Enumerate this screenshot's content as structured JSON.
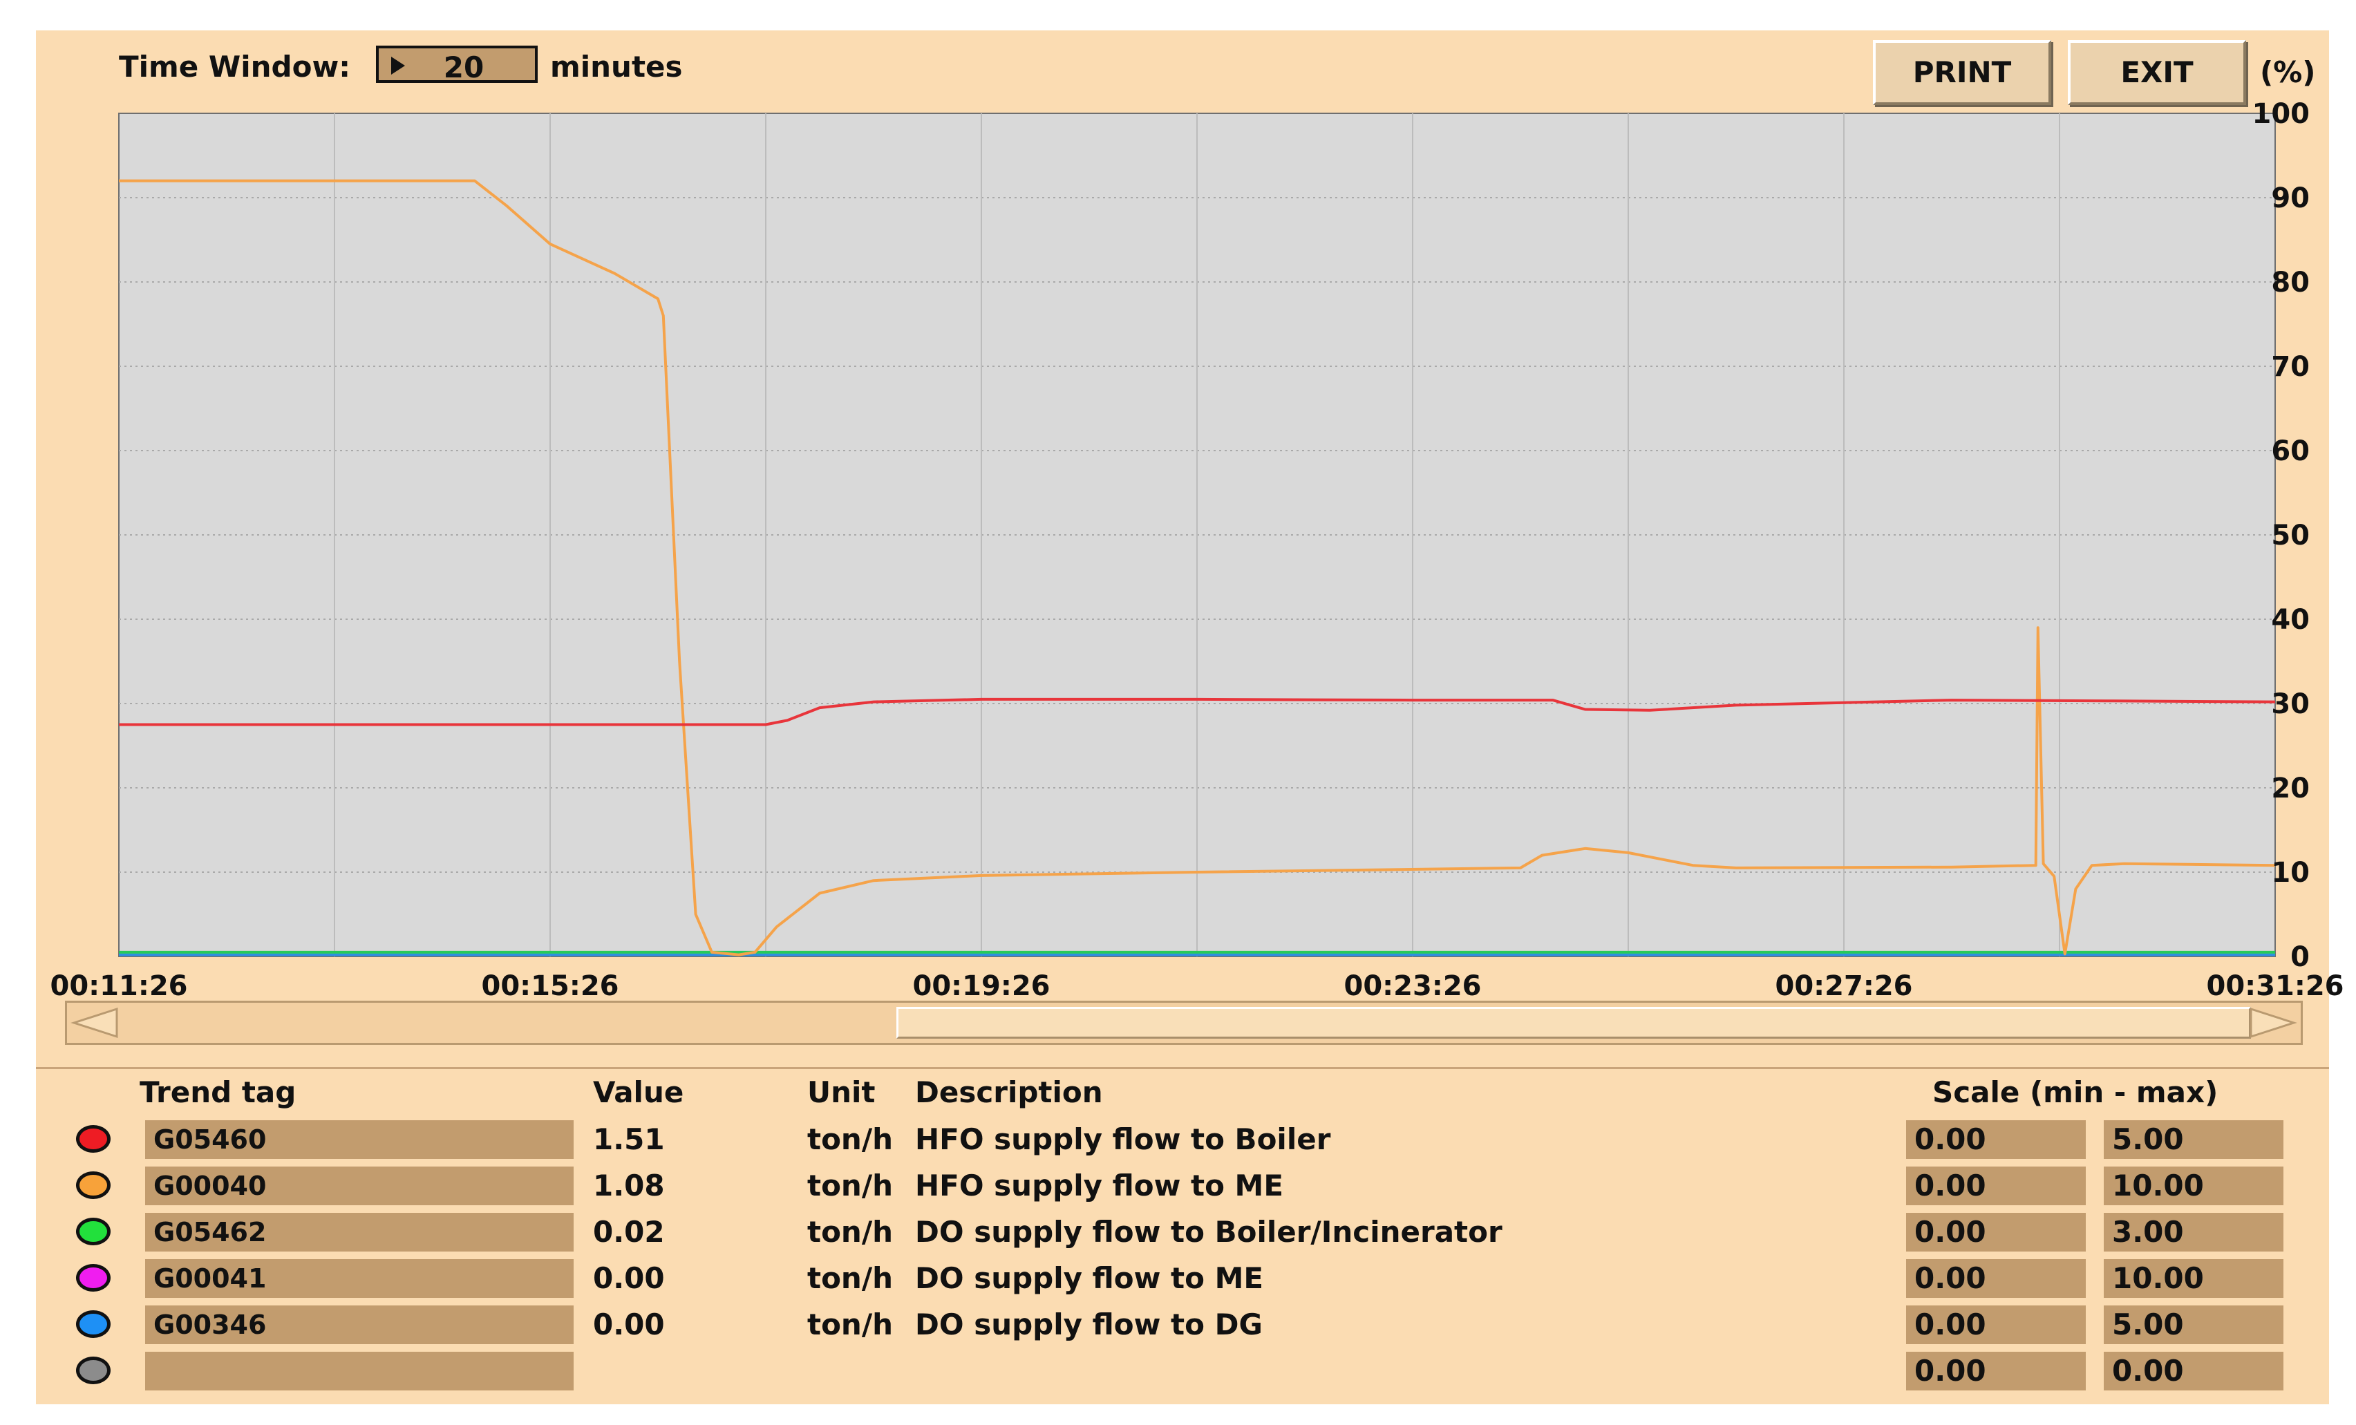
{
  "header": {
    "time_window_label": "Time Window:",
    "time_window_value": "20",
    "time_window_unit": "minutes",
    "print_label": "PRINT",
    "exit_label": "EXIT",
    "y_unit": "(%)"
  },
  "chart_data": {
    "type": "line",
    "ylabel": "(%)",
    "ylim": [
      0,
      100
    ],
    "y_ticks": [
      "0",
      "10",
      "20",
      "30",
      "40",
      "50",
      "60",
      "70",
      "80",
      "90",
      "100"
    ],
    "xlim_minutes": [
      0,
      20
    ],
    "x_tick_labels": [
      "00:11:26",
      "00:15:26",
      "00:19:26",
      "00:23:26",
      "00:27:26",
      "00:31:26"
    ],
    "grid": true,
    "background": "#d9d9d9",
    "series": [
      {
        "tag": "G05460",
        "color": "#e8353b",
        "points": [
          [
            0,
            27.5
          ],
          [
            6.0,
            27.5
          ],
          [
            6.2,
            28
          ],
          [
            6.5,
            29.5
          ],
          [
            7.0,
            30.2
          ],
          [
            8.0,
            30.5
          ],
          [
            10,
            30.5
          ],
          [
            12,
            30.4
          ],
          [
            13.3,
            30.4
          ],
          [
            13.6,
            29.3
          ],
          [
            14.2,
            29.2
          ],
          [
            15,
            29.8
          ],
          [
            17,
            30.4
          ],
          [
            18.5,
            30.3
          ],
          [
            20,
            30.2
          ]
        ]
      },
      {
        "tag": "G00040",
        "color": "#f5a34a",
        "points": [
          [
            0,
            92
          ],
          [
            3.3,
            92
          ],
          [
            3.6,
            89
          ],
          [
            4.0,
            84.5
          ],
          [
            4.6,
            81
          ],
          [
            5.0,
            78
          ],
          [
            5.05,
            76
          ],
          [
            5.2,
            35
          ],
          [
            5.35,
            5
          ],
          [
            5.5,
            0.5
          ],
          [
            5.75,
            0.2
          ],
          [
            5.9,
            0.5
          ],
          [
            6.1,
            3.5
          ],
          [
            6.5,
            7.5
          ],
          [
            7.0,
            9.0
          ],
          [
            8.0,
            9.6
          ],
          [
            10,
            10.0
          ],
          [
            13.0,
            10.5
          ],
          [
            13.2,
            12.0
          ],
          [
            13.6,
            12.8
          ],
          [
            14.0,
            12.3
          ],
          [
            14.6,
            10.8
          ],
          [
            15,
            10.5
          ],
          [
            17,
            10.6
          ],
          [
            17.78,
            10.8
          ],
          [
            17.8,
            39.0
          ],
          [
            17.85,
            11.0
          ],
          [
            17.95,
            9.5
          ],
          [
            18.05,
            0.3
          ],
          [
            18.15,
            8
          ],
          [
            18.3,
            10.8
          ],
          [
            18.6,
            11.0
          ],
          [
            20,
            10.8
          ]
        ]
      },
      {
        "tag": "G05462",
        "color": "#27c95b",
        "points": [
          [
            0,
            0.5
          ],
          [
            20,
            0.5
          ]
        ]
      },
      {
        "tag": "G00346",
        "color": "#2e8fe0",
        "points": [
          [
            0,
            0.2
          ],
          [
            20,
            0.2
          ]
        ]
      }
    ]
  },
  "table": {
    "headers": {
      "tag": "Trend tag",
      "value": "Value",
      "unit": "Unit",
      "description": "Description",
      "scale": "Scale (min - max)"
    },
    "rows": [
      {
        "color": "#ee1c24",
        "tag": "G05460",
        "value": "1.51",
        "unit": "ton/h",
        "description": "HFO supply flow to Boiler",
        "min": "0.00",
        "max": "5.00"
      },
      {
        "color": "#f7a23a",
        "tag": "G00040",
        "value": "1.08",
        "unit": "ton/h",
        "description": "HFO supply flow to ME",
        "min": "0.00",
        "max": "10.00"
      },
      {
        "color": "#22e03c",
        "tag": "G05462",
        "value": "0.02",
        "unit": "ton/h",
        "description": "DO supply flow to Boiler/Incinerator",
        "min": "0.00",
        "max": "3.00"
      },
      {
        "color": "#f01df0",
        "tag": "G00041",
        "value": "0.00",
        "unit": "ton/h",
        "description": "DO supply flow to ME",
        "min": "0.00",
        "max": "10.00"
      },
      {
        "color": "#1e90f5",
        "tag": "G00346",
        "value": "0.00",
        "unit": "ton/h",
        "description": "DO supply flow to DG",
        "min": "0.00",
        "max": "5.00"
      },
      {
        "color": "#8c8c8c",
        "tag": "",
        "value": "",
        "unit": "",
        "description": "",
        "min": "0.00",
        "max": "0.00"
      }
    ]
  }
}
